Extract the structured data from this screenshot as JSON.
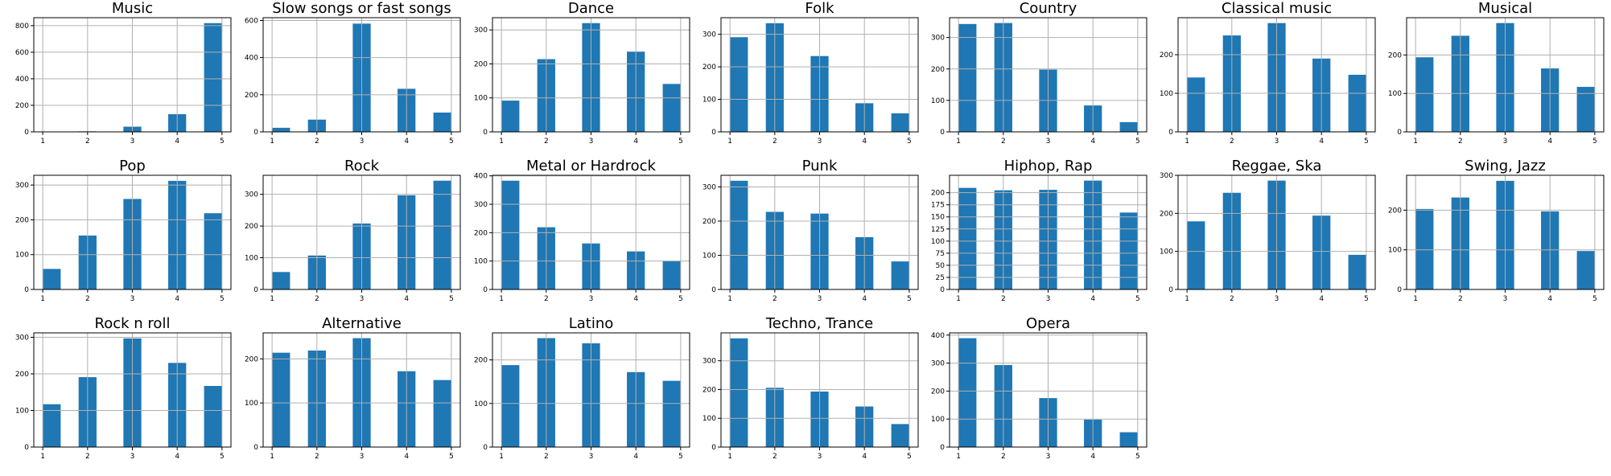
{
  "figure": {
    "bar_color": "#1f77b4"
  },
  "chart_data": [
    {
      "type": "bar",
      "title": "Music",
      "categories": [
        1,
        2,
        3,
        4,
        5
      ],
      "values": [
        3,
        4,
        39,
        133,
        819
      ],
      "yticks": [
        0,
        200,
        400,
        600,
        800
      ],
      "ylim": [
        0,
        860
      ]
    },
    {
      "type": "bar",
      "title": "Slow songs or fast songs",
      "categories": [
        1,
        2,
        3,
        4,
        5
      ],
      "values": [
        22,
        66,
        583,
        232,
        104
      ],
      "yticks": [
        0,
        200,
        400,
        600
      ],
      "ylim": [
        0,
        615
      ]
    },
    {
      "type": "bar",
      "title": "Dance",
      "categories": [
        1,
        2,
        3,
        4,
        5
      ],
      "values": [
        92,
        214,
        320,
        236,
        141
      ],
      "yticks": [
        0,
        100,
        200,
        300
      ],
      "ylim": [
        0,
        336
      ]
    },
    {
      "type": "bar",
      "title": "Folk",
      "categories": [
        1,
        2,
        3,
        4,
        5
      ],
      "values": [
        291,
        334,
        233,
        88,
        57
      ],
      "yticks": [
        0,
        100,
        200,
        300
      ],
      "ylim": [
        0,
        351
      ]
    },
    {
      "type": "bar",
      "title": "Country",
      "categories": [
        1,
        2,
        3,
        4,
        5
      ],
      "values": [
        343,
        346,
        198,
        84,
        31
      ],
      "yticks": [
        0,
        100,
        200,
        300
      ],
      "ylim": [
        0,
        363
      ]
    },
    {
      "type": "bar",
      "title": "Classical music",
      "categories": [
        1,
        2,
        3,
        4,
        5
      ],
      "values": [
        141,
        250,
        282,
        190,
        148
      ],
      "yticks": [
        0,
        100,
        200
      ],
      "ylim": [
        0,
        296
      ]
    },
    {
      "type": "bar",
      "title": "Musical",
      "categories": [
        1,
        2,
        3,
        4,
        5
      ],
      "values": [
        194,
        250,
        283,
        165,
        117
      ],
      "yticks": [
        0,
        100,
        200
      ],
      "ylim": [
        0,
        297
      ]
    },
    {
      "type": "bar",
      "title": "Pop",
      "categories": [
        1,
        2,
        3,
        4,
        5
      ],
      "values": [
        59,
        155,
        260,
        312,
        219
      ],
      "yticks": [
        0,
        100,
        200,
        300
      ],
      "ylim": [
        0,
        328
      ]
    },
    {
      "type": "bar",
      "title": "Rock",
      "categories": [
        1,
        2,
        3,
        4,
        5
      ],
      "values": [
        55,
        107,
        208,
        297,
        343
      ],
      "yticks": [
        0,
        100,
        200,
        300
      ],
      "ylim": [
        0,
        360
      ]
    },
    {
      "type": "bar",
      "title": "Metal or Hardrock",
      "categories": [
        1,
        2,
        3,
        4,
        5
      ],
      "values": [
        383,
        219,
        162,
        134,
        101
      ],
      "yticks": [
        0,
        100,
        200,
        300,
        400
      ],
      "ylim": [
        0,
        402
      ]
    },
    {
      "type": "bar",
      "title": "Punk",
      "categories": [
        1,
        2,
        3,
        4,
        5
      ],
      "values": [
        318,
        227,
        222,
        153,
        82
      ],
      "yticks": [
        0,
        100,
        200,
        300
      ],
      "ylim": [
        0,
        334
      ]
    },
    {
      "type": "bar",
      "title": "Hiphop, Rap",
      "categories": [
        1,
        2,
        3,
        4,
        5
      ],
      "values": [
        210,
        205,
        206,
        225,
        159
      ],
      "yticks": [
        0,
        25,
        50,
        75,
        100,
        125,
        150,
        175,
        200
      ],
      "ylim": [
        0,
        236
      ]
    },
    {
      "type": "bar",
      "title": "Reggae, Ska",
      "categories": [
        1,
        2,
        3,
        4,
        5
      ],
      "values": [
        179,
        254,
        286,
        194,
        91
      ],
      "yticks": [
        0,
        100,
        200,
        300
      ],
      "ylim": [
        0,
        300
      ]
    },
    {
      "type": "bar",
      "title": "Swing, Jazz",
      "categories": [
        1,
        2,
        3,
        4,
        5
      ],
      "values": [
        203,
        232,
        274,
        197,
        97
      ],
      "yticks": [
        0,
        100,
        200
      ],
      "ylim": [
        0,
        288
      ]
    },
    {
      "type": "bar",
      "title": "Rock n roll",
      "categories": [
        1,
        2,
        3,
        4,
        5
      ],
      "values": [
        117,
        191,
        297,
        230,
        167
      ],
      "yticks": [
        0,
        100,
        200,
        300
      ],
      "ylim": [
        0,
        312
      ]
    },
    {
      "type": "bar",
      "title": "Alternative",
      "categories": [
        1,
        2,
        3,
        4,
        5
      ],
      "values": [
        214,
        219,
        247,
        172,
        152
      ],
      "yticks": [
        0,
        100,
        200
      ],
      "ylim": [
        0,
        259
      ]
    },
    {
      "type": "bar",
      "title": "Latino",
      "categories": [
        1,
        2,
        3,
        4,
        5
      ],
      "values": [
        188,
        250,
        238,
        172,
        152
      ],
      "yticks": [
        0,
        100,
        200
      ],
      "ylim": [
        0,
        262
      ]
    },
    {
      "type": "bar",
      "title": "Techno, Trance",
      "categories": [
        1,
        2,
        3,
        4,
        5
      ],
      "values": [
        378,
        206,
        193,
        141,
        80
      ],
      "yticks": [
        0,
        100,
        200,
        300
      ],
      "ylim": [
        0,
        397
      ]
    },
    {
      "type": "bar",
      "title": "Opera",
      "categories": [
        1,
        2,
        3,
        4,
        5
      ],
      "values": [
        389,
        293,
        175,
        98,
        53
      ],
      "yticks": [
        0,
        100,
        200,
        300,
        400
      ],
      "ylim": [
        0,
        408
      ]
    }
  ]
}
